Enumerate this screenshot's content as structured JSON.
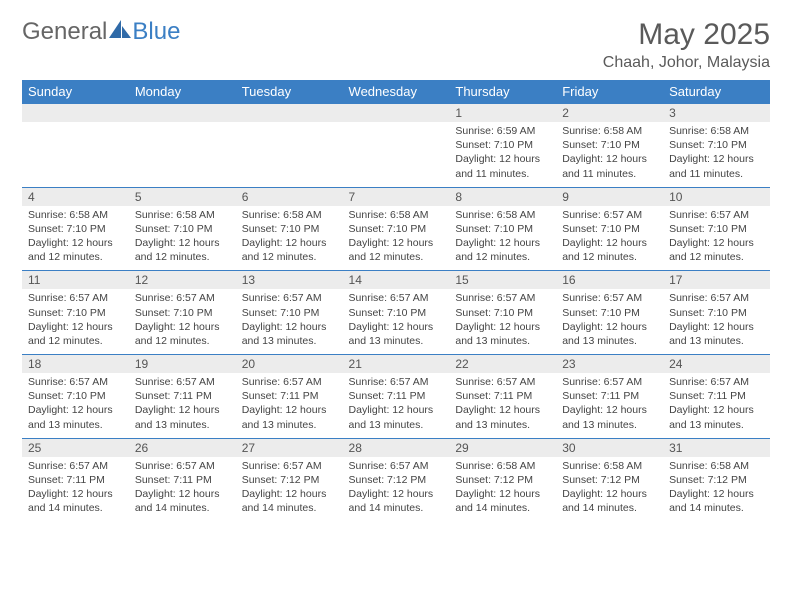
{
  "brand": {
    "part1": "General",
    "part2": "Blue"
  },
  "title": {
    "month": "May 2025",
    "location": "Chaah, Johor, Malaysia"
  },
  "colors": {
    "header_bg": "#3b7fc4",
    "header_text": "#ffffff",
    "numrow_bg": "#ececec",
    "row_border": "#3b7fc4",
    "body_text": "#444444",
    "title_text": "#5a5a5a"
  },
  "typography": {
    "month_fontsize": 30,
    "location_fontsize": 16,
    "dayheader_fontsize": 13,
    "daynum_fontsize": 12,
    "detail_fontsize": 10.5
  },
  "day_headers": [
    "Sunday",
    "Monday",
    "Tuesday",
    "Wednesday",
    "Thursday",
    "Friday",
    "Saturday"
  ],
  "weeks": [
    [
      {
        "num": "",
        "lines": []
      },
      {
        "num": "",
        "lines": []
      },
      {
        "num": "",
        "lines": []
      },
      {
        "num": "",
        "lines": []
      },
      {
        "num": "1",
        "lines": [
          "Sunrise: 6:59 AM",
          "Sunset: 7:10 PM",
          "Daylight: 12 hours",
          "and 11 minutes."
        ]
      },
      {
        "num": "2",
        "lines": [
          "Sunrise: 6:58 AM",
          "Sunset: 7:10 PM",
          "Daylight: 12 hours",
          "and 11 minutes."
        ]
      },
      {
        "num": "3",
        "lines": [
          "Sunrise: 6:58 AM",
          "Sunset: 7:10 PM",
          "Daylight: 12 hours",
          "and 11 minutes."
        ]
      }
    ],
    [
      {
        "num": "4",
        "lines": [
          "Sunrise: 6:58 AM",
          "Sunset: 7:10 PM",
          "Daylight: 12 hours",
          "and 12 minutes."
        ]
      },
      {
        "num": "5",
        "lines": [
          "Sunrise: 6:58 AM",
          "Sunset: 7:10 PM",
          "Daylight: 12 hours",
          "and 12 minutes."
        ]
      },
      {
        "num": "6",
        "lines": [
          "Sunrise: 6:58 AM",
          "Sunset: 7:10 PM",
          "Daylight: 12 hours",
          "and 12 minutes."
        ]
      },
      {
        "num": "7",
        "lines": [
          "Sunrise: 6:58 AM",
          "Sunset: 7:10 PM",
          "Daylight: 12 hours",
          "and 12 minutes."
        ]
      },
      {
        "num": "8",
        "lines": [
          "Sunrise: 6:58 AM",
          "Sunset: 7:10 PM",
          "Daylight: 12 hours",
          "and 12 minutes."
        ]
      },
      {
        "num": "9",
        "lines": [
          "Sunrise: 6:57 AM",
          "Sunset: 7:10 PM",
          "Daylight: 12 hours",
          "and 12 minutes."
        ]
      },
      {
        "num": "10",
        "lines": [
          "Sunrise: 6:57 AM",
          "Sunset: 7:10 PM",
          "Daylight: 12 hours",
          "and 12 minutes."
        ]
      }
    ],
    [
      {
        "num": "11",
        "lines": [
          "Sunrise: 6:57 AM",
          "Sunset: 7:10 PM",
          "Daylight: 12 hours",
          "and 12 minutes."
        ]
      },
      {
        "num": "12",
        "lines": [
          "Sunrise: 6:57 AM",
          "Sunset: 7:10 PM",
          "Daylight: 12 hours",
          "and 12 minutes."
        ]
      },
      {
        "num": "13",
        "lines": [
          "Sunrise: 6:57 AM",
          "Sunset: 7:10 PM",
          "Daylight: 12 hours",
          "and 13 minutes."
        ]
      },
      {
        "num": "14",
        "lines": [
          "Sunrise: 6:57 AM",
          "Sunset: 7:10 PM",
          "Daylight: 12 hours",
          "and 13 minutes."
        ]
      },
      {
        "num": "15",
        "lines": [
          "Sunrise: 6:57 AM",
          "Sunset: 7:10 PM",
          "Daylight: 12 hours",
          "and 13 minutes."
        ]
      },
      {
        "num": "16",
        "lines": [
          "Sunrise: 6:57 AM",
          "Sunset: 7:10 PM",
          "Daylight: 12 hours",
          "and 13 minutes."
        ]
      },
      {
        "num": "17",
        "lines": [
          "Sunrise: 6:57 AM",
          "Sunset: 7:10 PM",
          "Daylight: 12 hours",
          "and 13 minutes."
        ]
      }
    ],
    [
      {
        "num": "18",
        "lines": [
          "Sunrise: 6:57 AM",
          "Sunset: 7:10 PM",
          "Daylight: 12 hours",
          "and 13 minutes."
        ]
      },
      {
        "num": "19",
        "lines": [
          "Sunrise: 6:57 AM",
          "Sunset: 7:11 PM",
          "Daylight: 12 hours",
          "and 13 minutes."
        ]
      },
      {
        "num": "20",
        "lines": [
          "Sunrise: 6:57 AM",
          "Sunset: 7:11 PM",
          "Daylight: 12 hours",
          "and 13 minutes."
        ]
      },
      {
        "num": "21",
        "lines": [
          "Sunrise: 6:57 AM",
          "Sunset: 7:11 PM",
          "Daylight: 12 hours",
          "and 13 minutes."
        ]
      },
      {
        "num": "22",
        "lines": [
          "Sunrise: 6:57 AM",
          "Sunset: 7:11 PM",
          "Daylight: 12 hours",
          "and 13 minutes."
        ]
      },
      {
        "num": "23",
        "lines": [
          "Sunrise: 6:57 AM",
          "Sunset: 7:11 PM",
          "Daylight: 12 hours",
          "and 13 minutes."
        ]
      },
      {
        "num": "24",
        "lines": [
          "Sunrise: 6:57 AM",
          "Sunset: 7:11 PM",
          "Daylight: 12 hours",
          "and 13 minutes."
        ]
      }
    ],
    [
      {
        "num": "25",
        "lines": [
          "Sunrise: 6:57 AM",
          "Sunset: 7:11 PM",
          "Daylight: 12 hours",
          "and 14 minutes."
        ]
      },
      {
        "num": "26",
        "lines": [
          "Sunrise: 6:57 AM",
          "Sunset: 7:11 PM",
          "Daylight: 12 hours",
          "and 14 minutes."
        ]
      },
      {
        "num": "27",
        "lines": [
          "Sunrise: 6:57 AM",
          "Sunset: 7:12 PM",
          "Daylight: 12 hours",
          "and 14 minutes."
        ]
      },
      {
        "num": "28",
        "lines": [
          "Sunrise: 6:57 AM",
          "Sunset: 7:12 PM",
          "Daylight: 12 hours",
          "and 14 minutes."
        ]
      },
      {
        "num": "29",
        "lines": [
          "Sunrise: 6:58 AM",
          "Sunset: 7:12 PM",
          "Daylight: 12 hours",
          "and 14 minutes."
        ]
      },
      {
        "num": "30",
        "lines": [
          "Sunrise: 6:58 AM",
          "Sunset: 7:12 PM",
          "Daylight: 12 hours",
          "and 14 minutes."
        ]
      },
      {
        "num": "31",
        "lines": [
          "Sunrise: 6:58 AM",
          "Sunset: 7:12 PM",
          "Daylight: 12 hours",
          "and 14 minutes."
        ]
      }
    ]
  ]
}
